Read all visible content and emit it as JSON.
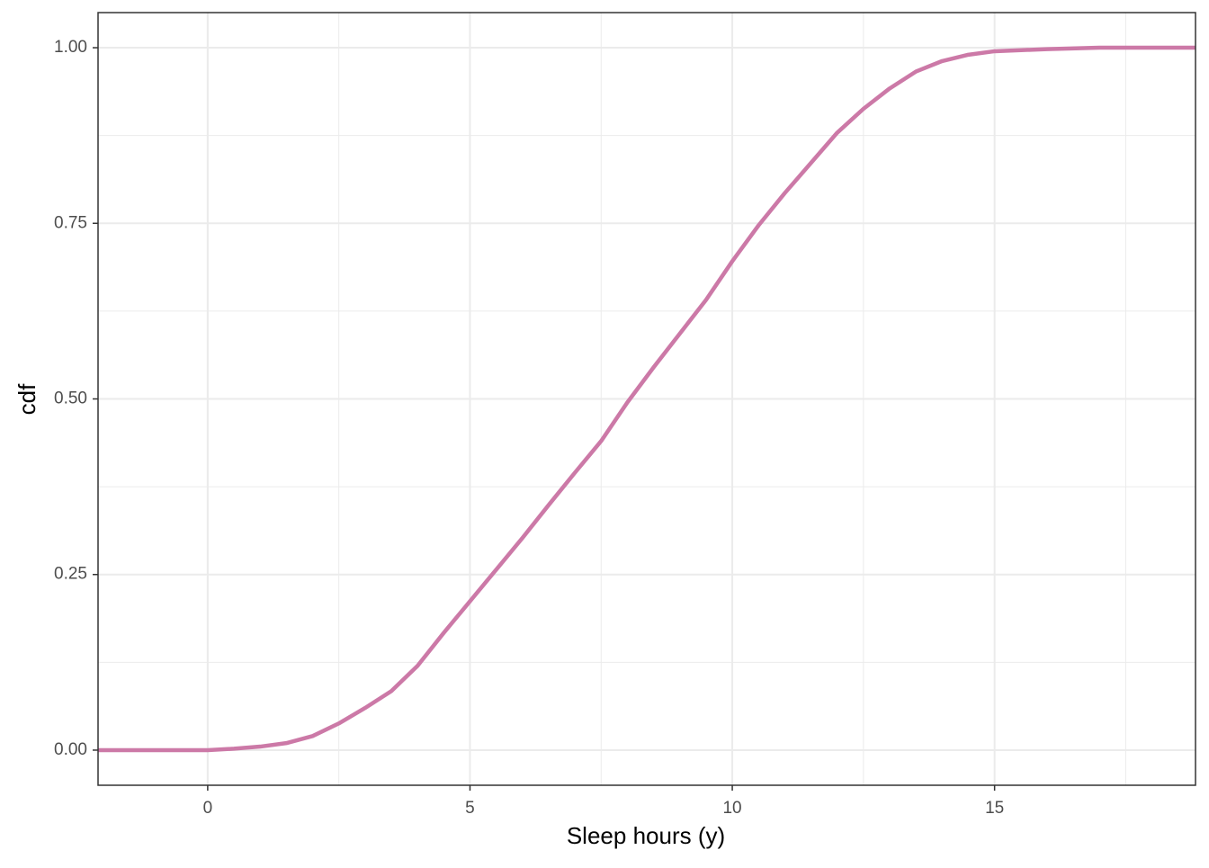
{
  "chart_data": {
    "type": "line",
    "x_label": "Sleep hours (y)",
    "y_label": "cdf",
    "x": [
      -2.09,
      -1,
      0,
      0.5,
      1,
      1.5,
      2,
      2.5,
      3,
      3.5,
      4,
      4.5,
      5,
      5.5,
      6,
      6.5,
      7,
      7.5,
      8,
      8.5,
      9,
      9.5,
      10,
      10.5,
      11,
      11.5,
      12,
      12.5,
      13,
      13.5,
      14,
      14.5,
      15,
      16,
      17,
      18.83
    ],
    "series": [
      {
        "name": "cdf",
        "color": "#cc79a7",
        "values": [
          0,
          0,
          0,
          0.002,
          0.005,
          0.01,
          0.02,
          0.038,
          0.06,
          0.084,
          0.12,
          0.167,
          0.212,
          0.257,
          0.302,
          0.349,
          0.395,
          0.44,
          0.495,
          0.545,
          0.593,
          0.641,
          0.696,
          0.747,
          0.793,
          0.836,
          0.879,
          0.913,
          0.942,
          0.966,
          0.981,
          0.99,
          0.995,
          0.998,
          1,
          1
        ]
      }
    ],
    "xlim": [
      -2.09,
      18.83
    ],
    "ylim": [
      -0.05,
      1.05
    ],
    "xticks": [
      0,
      5,
      10,
      15
    ],
    "yticks": [
      {
        "value": 0,
        "label": "0.00"
      },
      {
        "value": 0.25,
        "label": "0.25"
      },
      {
        "value": 0.5,
        "label": "0.50"
      },
      {
        "value": 0.75,
        "label": "0.75"
      },
      {
        "value": 1,
        "label": "1.00"
      }
    ],
    "x_minor_ticks": [
      2.5,
      7.5,
      12.5,
      17.5
    ],
    "y_minor_ticks": [
      0.125,
      0.375,
      0.625,
      0.875
    ],
    "grid": true
  }
}
